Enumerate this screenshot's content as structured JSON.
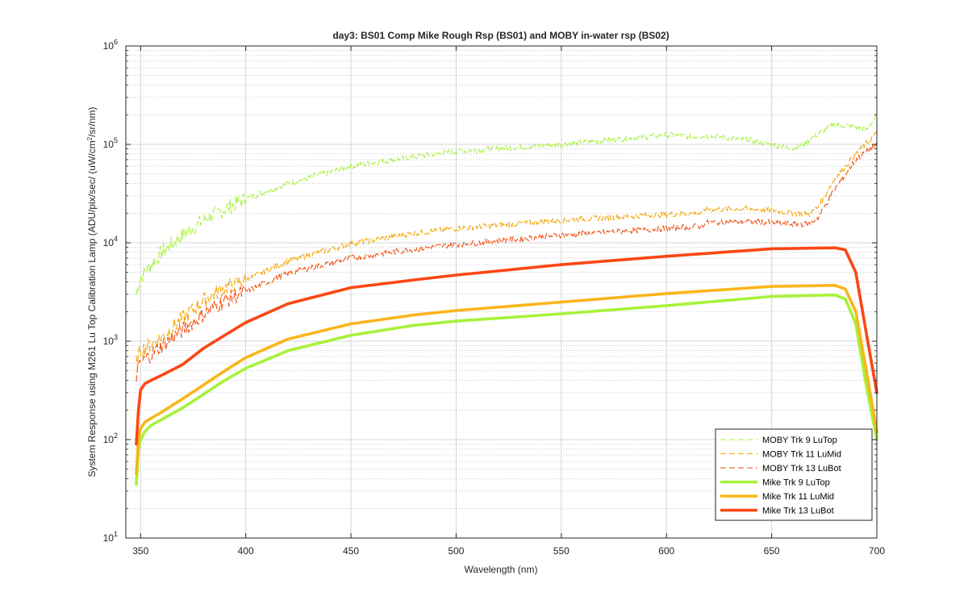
{
  "chart_data": {
    "type": "line",
    "title": "day3: BS01  Comp Mike Rough Rsp (BS01) and MOBY in-water rsp (BS02)",
    "xlabel": "Wavelength (nm)",
    "ylabel_main": "System Response using M261 Lu Top Calibration Lamp  (ADU/pix/sec/ (uW/cm",
    "ylabel_sup": "2",
    "ylabel_end": "/sr/nm)",
    "xlim": [
      343,
      700
    ],
    "ylim": [
      10,
      1000000
    ],
    "yscale": "log",
    "grid": true,
    "legend_position": "bottom-right",
    "x_ticks": [
      350,
      400,
      450,
      500,
      550,
      600,
      650,
      700
    ],
    "x_tick_labels": [
      "350",
      "400",
      "450",
      "500",
      "550",
      "600",
      "650",
      "700"
    ],
    "y_ticks": [
      10,
      100,
      1000,
      10000,
      100000,
      1000000
    ],
    "y_tick_base": "10",
    "y_tick_exponents": [
      "1",
      "2",
      "3",
      "4",
      "5",
      "6"
    ],
    "series": [
      {
        "name": "MOBY Trk 9 LuTop",
        "color": "#a6f23a",
        "style": "dashed",
        "x": [
          348,
          350,
          355,
          360,
          370,
          380,
          390,
          400,
          420,
          450,
          480,
          500,
          550,
          600,
          610,
          620,
          640,
          650,
          660,
          665,
          670,
          675,
          680,
          690,
          695,
          700
        ],
        "y": [
          3000,
          4500,
          6000,
          8000,
          12000,
          17000,
          22000,
          28000,
          40000,
          60000,
          75000,
          85000,
          100000,
          125000,
          120000,
          122000,
          110000,
          100000,
          90000,
          100000,
          120000,
          140000,
          160000,
          150000,
          140000,
          200000
        ]
      },
      {
        "name": "MOBY Trk 11 LuMid",
        "color": "#f5a300",
        "style": "dashed",
        "x": [
          348,
          350,
          360,
          370,
          380,
          390,
          400,
          420,
          450,
          480,
          500,
          550,
          600,
          617,
          618,
          640,
          650,
          660,
          668,
          672,
          680,
          690,
          700
        ],
        "y": [
          600,
          800,
          1100,
          1700,
          2600,
          3500,
          4200,
          6500,
          9800,
          12500,
          14000,
          17000,
          19500,
          20000,
          22000,
          22000,
          21500,
          20000,
          19500,
          23000,
          45000,
          80000,
          130000
        ]
      },
      {
        "name": "MOBY Trk 13 LuBot",
        "color": "#f04e0d",
        "style": "dashed",
        "x": [
          348,
          350,
          360,
          370,
          380,
          390,
          400,
          420,
          450,
          480,
          500,
          550,
          600,
          617,
          618,
          640,
          650,
          660,
          668,
          672,
          680,
          690,
          700
        ],
        "y": [
          450,
          600,
          900,
          1300,
          1900,
          2600,
          3200,
          4900,
          7000,
          8600,
          9600,
          12000,
          14000,
          14800,
          16000,
          16500,
          16000,
          15500,
          15500,
          18000,
          35000,
          70000,
          100000
        ]
      },
      {
        "name": "Mike Trk 9 LuTop",
        "color": "#a6f23a",
        "style": "solid",
        "x": [
          348,
          349,
          350,
          352,
          355,
          360,
          370,
          380,
          390,
          400,
          420,
          450,
          480,
          500,
          550,
          600,
          650,
          680,
          685,
          690,
          695,
          700
        ],
        "y": [
          35,
          80,
          100,
          120,
          140,
          160,
          210,
          290,
          400,
          530,
          800,
          1150,
          1450,
          1600,
          1900,
          2300,
          2850,
          2950,
          2700,
          1500,
          350,
          100
        ]
      },
      {
        "name": "Mike Trk 11 LuMid",
        "color": "#fab51a",
        "style": "solid",
        "x": [
          348,
          349,
          350,
          352,
          355,
          360,
          370,
          380,
          390,
          400,
          420,
          450,
          480,
          500,
          550,
          600,
          650,
          680,
          685,
          690,
          695,
          700
        ],
        "y": [
          45,
          100,
          130,
          150,
          165,
          190,
          260,
          360,
          500,
          680,
          1050,
          1500,
          1850,
          2050,
          2500,
          3050,
          3600,
          3700,
          3400,
          2000,
          500,
          120
        ]
      },
      {
        "name": "Mike Trk 13 LuBot",
        "color": "#fa4714",
        "style": "solid",
        "x": [
          348,
          349,
          350,
          352,
          355,
          360,
          370,
          380,
          390,
          400,
          420,
          450,
          480,
          500,
          550,
          600,
          650,
          680,
          685,
          690,
          695,
          700
        ],
        "y": [
          90,
          200,
          320,
          370,
          400,
          450,
          580,
          850,
          1150,
          1550,
          2400,
          3500,
          4200,
          4700,
          6000,
          7300,
          8700,
          8900,
          8500,
          5000,
          1200,
          300
        ]
      }
    ]
  }
}
